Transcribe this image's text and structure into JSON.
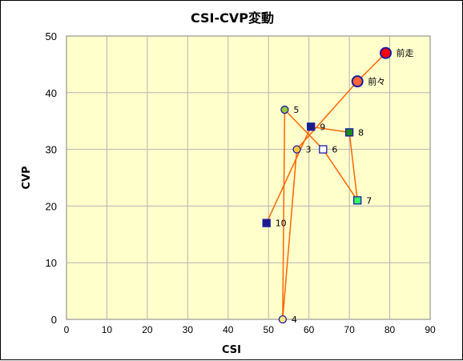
{
  "chart_data": {
    "type": "scatter",
    "title": "CSI-CVP変動",
    "xlabel": "CSI",
    "ylabel": "CVP",
    "xlim": [
      0,
      90
    ],
    "ylim": [
      0,
      50
    ],
    "xticks": [
      0,
      10,
      20,
      30,
      40,
      50,
      60,
      70,
      80,
      90
    ],
    "yticks": [
      0,
      10,
      20,
      30,
      40,
      50
    ],
    "grid": true,
    "background": "#ffffcc",
    "line_color": "#ff6600",
    "points": [
      {
        "label": "前走",
        "x": 79,
        "y": 47,
        "marker": "circle-large",
        "fill": "#ff0000",
        "stroke": "#1a1aa6"
      },
      {
        "label": "前々",
        "x": 72,
        "y": 42,
        "marker": "circle-large",
        "fill": "#ff6633",
        "stroke": "#1a1aa6"
      },
      {
        "label": "3",
        "x": 57,
        "y": 30,
        "marker": "circle",
        "fill": "#ffcc33",
        "stroke": "#1a1aa6"
      },
      {
        "label": "4",
        "x": 53.5,
        "y": 0,
        "marker": "circle",
        "fill": "#ffe680",
        "stroke": "#1a1aa6"
      },
      {
        "label": "5",
        "x": 54,
        "y": 37,
        "marker": "circle",
        "fill": "#99cc33",
        "stroke": "#1a1aa6"
      },
      {
        "label": "6",
        "x": 63.5,
        "y": 30,
        "marker": "square",
        "fill": "#ffffff",
        "stroke": "#1a1aa6"
      },
      {
        "label": "7",
        "x": 72,
        "y": 21,
        "marker": "square",
        "fill": "#33ff66",
        "stroke": "#1a1aa6"
      },
      {
        "label": "8",
        "x": 70,
        "y": 33,
        "marker": "square",
        "fill": "#1a8a1a",
        "stroke": "#1a1aa6"
      },
      {
        "label": "9",
        "x": 60.5,
        "y": 34,
        "marker": "square",
        "fill": "#1a1a8c",
        "stroke": "#1a1aa6"
      },
      {
        "label": "10",
        "x": 49.5,
        "y": 17,
        "marker": "square",
        "fill": "#1a1a8c",
        "stroke": "#1a1aa6"
      }
    ]
  }
}
